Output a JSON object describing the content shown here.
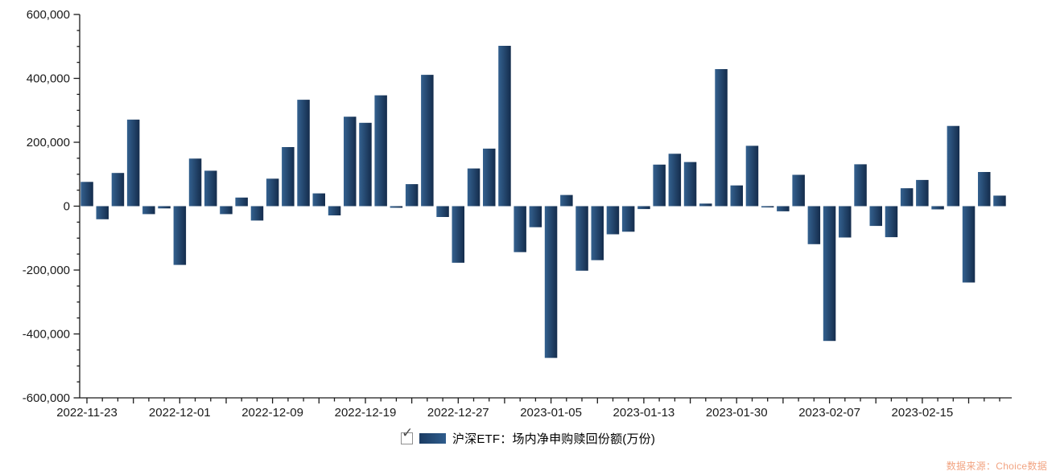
{
  "legend": {
    "checkbox_checked": true,
    "label": "沪深ETF：场内净申购赎回份额(万份)"
  },
  "source_note": "数据来源：Choice数据",
  "colors": {
    "bar_gradient_start": "#34618F",
    "bar_gradient_end": "#142C4C",
    "swatch_gradient_start": "#1B3C63",
    "swatch_gradient_end": "#2F5C8C",
    "axis": "#1a1a1a",
    "tick_label": "#1a1a1a",
    "source_text": "#F2A482"
  },
  "chart_data": {
    "type": "bar",
    "title": "",
    "xlabel": "",
    "ylabel": "",
    "ylim": [
      -600000,
      600000
    ],
    "y_major_step": 200000,
    "y_minor_step": 50000,
    "x_label_every": 6,
    "x_major_tick_every": 3,
    "grid": false,
    "legend_position": "bottom",
    "x": [
      "2022-11-23",
      "2022-11-24",
      "2022-11-25",
      "2022-11-28",
      "2022-11-29",
      "2022-11-30",
      "2022-12-01",
      "2022-12-02",
      "2022-12-05",
      "2022-12-06",
      "2022-12-07",
      "2022-12-08",
      "2022-12-09",
      "2022-12-12",
      "2022-12-13",
      "2022-12-14",
      "2022-12-15",
      "2022-12-16",
      "2022-12-19",
      "2022-12-20",
      "2022-12-21",
      "2022-12-22",
      "2022-12-23",
      "2022-12-26",
      "2022-12-27",
      "2022-12-28",
      "2022-12-29",
      "2022-12-30",
      "2023-01-03",
      "2023-01-04",
      "2023-01-05",
      "2023-01-06",
      "2023-01-09",
      "2023-01-10",
      "2023-01-11",
      "2023-01-12",
      "2023-01-13",
      "2023-01-16",
      "2023-01-17",
      "2023-01-18",
      "2023-01-19",
      "2023-01-20",
      "2023-01-30",
      "2023-01-31",
      "2023-02-01",
      "2023-02-02",
      "2023-02-03",
      "2023-02-06",
      "2023-02-07",
      "2023-02-08",
      "2023-02-09",
      "2023-02-10",
      "2023-02-13",
      "2023-02-14",
      "2023-02-15",
      "2023-02-16",
      "2023-02-17",
      "2023-02-20",
      "2023-02-21",
      "2023-02-22"
    ],
    "x_tick_labels": [
      "2022-11-23",
      "2022-12-01",
      "2022-12-09",
      "2022-12-19",
      "2022-12-27",
      "2023-01-05",
      "2023-01-13",
      "2023-01-30",
      "2023-02-07",
      "2023-02-15"
    ],
    "series": [
      {
        "name": "沪深ETF：场内净申购赎回份额(万份)",
        "values": [
          76000,
          -41000,
          104000,
          271000,
          -25000,
          -7000,
          -184000,
          149000,
          111000,
          -25000,
          27000,
          -45000,
          86000,
          185000,
          333000,
          40000,
          -29000,
          280000,
          261000,
          347000,
          -5000,
          69000,
          411000,
          -34000,
          -177000,
          118000,
          180000,
          502000,
          -144000,
          -66000,
          -475000,
          35000,
          -202000,
          -169000,
          -88000,
          -80000,
          -9000,
          130000,
          164000,
          138000,
          8000,
          429000,
          65000,
          189000,
          -4000,
          -16000,
          98000,
          -119000,
          -422000,
          -98000,
          131000,
          -62000,
          -97000,
          56000,
          82000,
          -10000,
          251000,
          -239000,
          107000,
          33000
        ]
      }
    ]
  }
}
